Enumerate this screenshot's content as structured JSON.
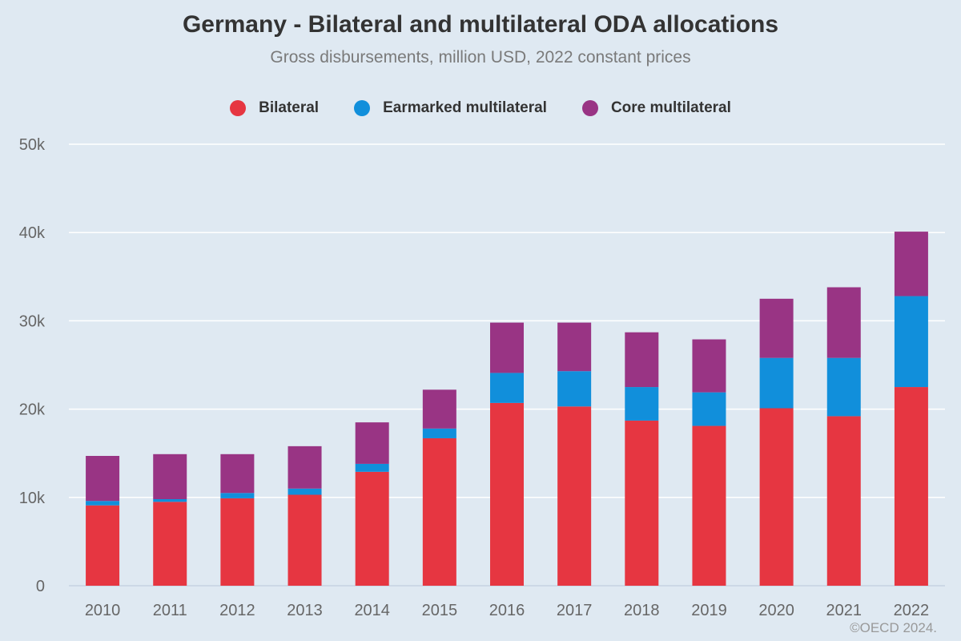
{
  "chart_data": {
    "type": "bar",
    "stacked": true,
    "title": "Germany - Bilateral and multilateral ODA allocations",
    "subtitle": "Gross disbursements, million USD, 2022 constant prices",
    "categories": [
      "2010",
      "2011",
      "2012",
      "2013",
      "2014",
      "2015",
      "2016",
      "2017",
      "2018",
      "2019",
      "2020",
      "2021",
      "2022"
    ],
    "series": [
      {
        "name": "Bilateral",
        "color": "#e63641",
        "values": [
          9100,
          9500,
          9900,
          10300,
          12900,
          16700,
          20700,
          20300,
          18700,
          18100,
          20100,
          19200,
          22500
        ]
      },
      {
        "name": "Earmarked multilateral",
        "color": "#118fdb",
        "values": [
          500,
          300,
          600,
          700,
          900,
          1100,
          3400,
          4000,
          3800,
          3800,
          5700,
          6600,
          10300
        ]
      },
      {
        "name": "Core multilateral",
        "color": "#993484",
        "values": [
          5100,
          5100,
          4400,
          4800,
          4700,
          4400,
          5700,
          5500,
          6200,
          6000,
          6700,
          8000,
          7300
        ]
      }
    ],
    "ylim": [
      0,
      50000
    ],
    "yticks": [
      0,
      10000,
      20000,
      30000,
      40000,
      50000
    ],
    "ytick_labels": [
      "0",
      "10k",
      "20k",
      "30k",
      "40k",
      "50k"
    ],
    "xlabel": "",
    "ylabel": "",
    "legend": "top-center",
    "grid": true
  },
  "credits": "©OECD 2024."
}
